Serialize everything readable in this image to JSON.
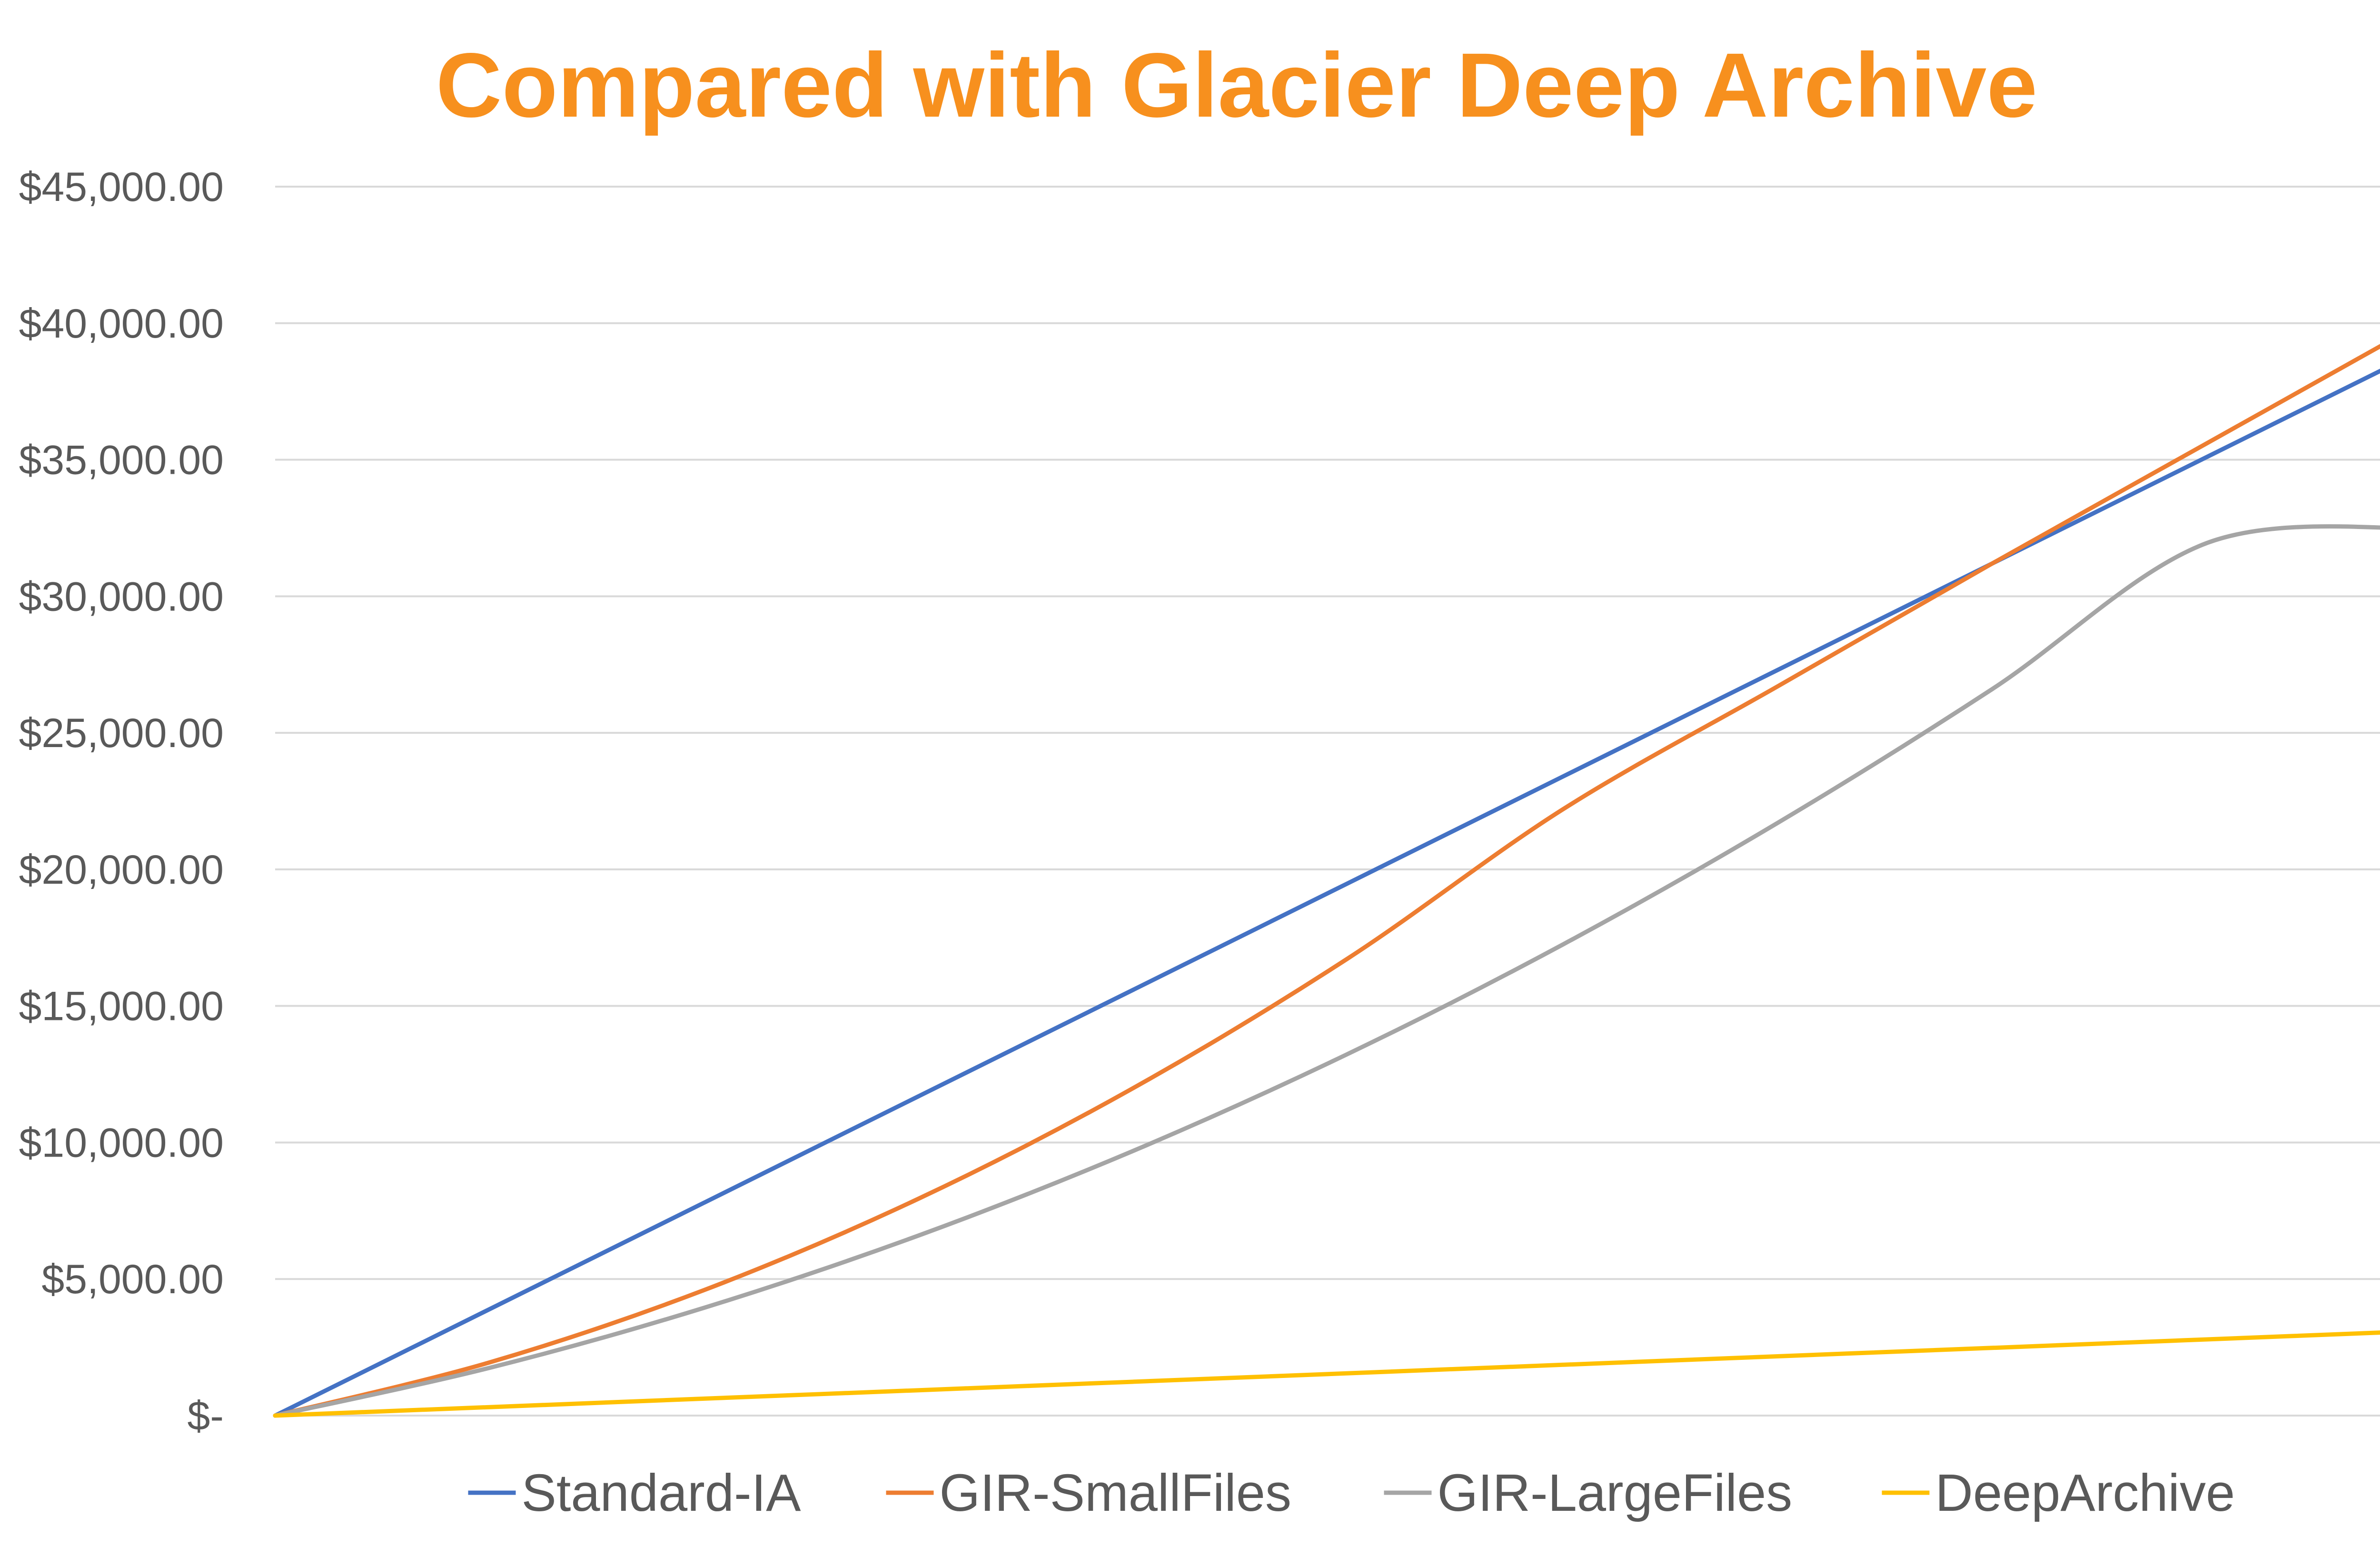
{
  "chart_data": {
    "type": "line",
    "title": "Compared with Glacier Deep Archive",
    "title_color": "#F7901E",
    "xlabel": "",
    "ylabel": "",
    "ylim": [
      0,
      45000
    ],
    "y_ticks": [
      0,
      5000,
      10000,
      15000,
      20000,
      25000,
      30000,
      35000,
      40000,
      45000
    ],
    "y_tick_labels": [
      "$-",
      "$5,000.00",
      "$10,000.00",
      "$15,000.00",
      "$20,000.00",
      "$25,000.00",
      "$30,000.00",
      "$35,000.00",
      "$40,000.00",
      "$45,000.00"
    ],
    "x": [
      0,
      0.1,
      0.2,
      0.3,
      0.4,
      0.5,
      0.6,
      0.7,
      0.8,
      0.9,
      1.0
    ],
    "grid": "horizontal",
    "legend_position": "bottom",
    "series": [
      {
        "name": "Standard-IA",
        "color": "#4472C4",
        "values": [
          0,
          3900,
          7800,
          11700,
          15600,
          19500,
          23400,
          27300,
          31200,
          35100,
          39000
        ]
      },
      {
        "name": "GIR-SmallFiles",
        "color": "#ED7D31",
        "values": [
          0,
          1950,
          4600,
          7950,
          12000,
          16750,
          22200,
          26700,
          31200,
          35600,
          40000
        ]
      },
      {
        "name": "GIR-LargeFiles",
        "color": "#A5A5A5",
        "values": [
          0,
          1750,
          3950,
          6600,
          9700,
          13250,
          17250,
          21700,
          26600,
          31950,
          32500
        ]
      },
      {
        "name": "DeepArchive",
        "color": "#FFC000",
        "values": [
          0,
          310,
          620,
          930,
          1240,
          1550,
          1860,
          2170,
          2480,
          2790,
          3100
        ]
      }
    ]
  }
}
